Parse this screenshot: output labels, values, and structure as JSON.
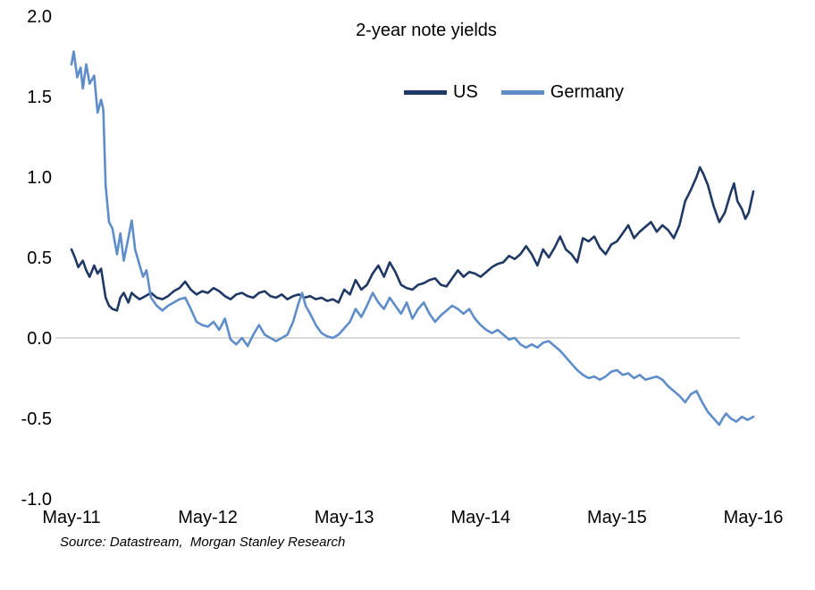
{
  "chart_data": {
    "type": "line",
    "title": "2-year note yields",
    "xlabel": "",
    "ylabel": "",
    "xlim": [
      0,
      60
    ],
    "ylim": [
      -1.0,
      2.0
    ],
    "x_unit": "months since May-2011",
    "x_tick_positions": [
      0,
      12,
      24,
      36,
      48,
      60
    ],
    "x_tick_labels": [
      "May-11",
      "May-12",
      "May-13",
      "May-14",
      "May-15",
      "May-16"
    ],
    "y_ticks": [
      2.0,
      1.5,
      1.0,
      0.5,
      0.0,
      -0.5,
      -1.0
    ],
    "y_tick_labels": [
      "2.0",
      "1.5",
      "1.0",
      "0.5",
      "0.0",
      "-0.5",
      "-1.0"
    ],
    "grid": "zero-line-only",
    "legend_position": "top-center",
    "zero_line_color": "#b3b3b3",
    "source_note": "Source: Datastream,  Morgan Stanley Research",
    "series": [
      {
        "name": "US",
        "color": "#1F3864",
        "points": [
          [
            0,
            0.55
          ],
          [
            0.3,
            0.5
          ],
          [
            0.6,
            0.44
          ],
          [
            1,
            0.48
          ],
          [
            1.3,
            0.42
          ],
          [
            1.6,
            0.38
          ],
          [
            2,
            0.45
          ],
          [
            2.3,
            0.4
          ],
          [
            2.6,
            0.43
          ],
          [
            3,
            0.25
          ],
          [
            3.3,
            0.2
          ],
          [
            3.6,
            0.18
          ],
          [
            4,
            0.17
          ],
          [
            4.3,
            0.25
          ],
          [
            4.6,
            0.28
          ],
          [
            5,
            0.22
          ],
          [
            5.3,
            0.28
          ],
          [
            5.6,
            0.26
          ],
          [
            6,
            0.24
          ],
          [
            6.5,
            0.26
          ],
          [
            7,
            0.28
          ],
          [
            7.5,
            0.25
          ],
          [
            8,
            0.24
          ],
          [
            8.5,
            0.26
          ],
          [
            9,
            0.29
          ],
          [
            9.5,
            0.31
          ],
          [
            10,
            0.35
          ],
          [
            10.5,
            0.3
          ],
          [
            11,
            0.27
          ],
          [
            11.5,
            0.29
          ],
          [
            12,
            0.28
          ],
          [
            12.5,
            0.31
          ],
          [
            13,
            0.29
          ],
          [
            13.5,
            0.26
          ],
          [
            14,
            0.24
          ],
          [
            14.5,
            0.27
          ],
          [
            15,
            0.28
          ],
          [
            15.5,
            0.26
          ],
          [
            16,
            0.25
          ],
          [
            16.5,
            0.28
          ],
          [
            17,
            0.29
          ],
          [
            17.5,
            0.26
          ],
          [
            18,
            0.25
          ],
          [
            18.5,
            0.27
          ],
          [
            19,
            0.24
          ],
          [
            19.5,
            0.26
          ],
          [
            20,
            0.27
          ],
          [
            20.5,
            0.25
          ],
          [
            21,
            0.26
          ],
          [
            21.5,
            0.24
          ],
          [
            22,
            0.25
          ],
          [
            22.5,
            0.23
          ],
          [
            23,
            0.24
          ],
          [
            23.5,
            0.22
          ],
          [
            24,
            0.3
          ],
          [
            24.5,
            0.27
          ],
          [
            25,
            0.36
          ],
          [
            25.5,
            0.3
          ],
          [
            26,
            0.33
          ],
          [
            26.5,
            0.4
          ],
          [
            27,
            0.45
          ],
          [
            27.5,
            0.38
          ],
          [
            28,
            0.47
          ],
          [
            28.5,
            0.41
          ],
          [
            29,
            0.33
          ],
          [
            29.5,
            0.31
          ],
          [
            30,
            0.3
          ],
          [
            30.5,
            0.33
          ],
          [
            31,
            0.34
          ],
          [
            31.5,
            0.36
          ],
          [
            32,
            0.37
          ],
          [
            32.5,
            0.33
          ],
          [
            33,
            0.32
          ],
          [
            33.5,
            0.37
          ],
          [
            34,
            0.42
          ],
          [
            34.5,
            0.38
          ],
          [
            35,
            0.41
          ],
          [
            35.5,
            0.4
          ],
          [
            36,
            0.38
          ],
          [
            36.5,
            0.41
          ],
          [
            37,
            0.44
          ],
          [
            37.5,
            0.46
          ],
          [
            38,
            0.47
          ],
          [
            38.5,
            0.51
          ],
          [
            39,
            0.49
          ],
          [
            39.5,
            0.52
          ],
          [
            40,
            0.57
          ],
          [
            40.5,
            0.52
          ],
          [
            41,
            0.45
          ],
          [
            41.5,
            0.55
          ],
          [
            42,
            0.5
          ],
          [
            42.5,
            0.56
          ],
          [
            43,
            0.63
          ],
          [
            43.5,
            0.55
          ],
          [
            44,
            0.52
          ],
          [
            44.5,
            0.47
          ],
          [
            45,
            0.62
          ],
          [
            45.5,
            0.6
          ],
          [
            46,
            0.63
          ],
          [
            46.5,
            0.56
          ],
          [
            47,
            0.52
          ],
          [
            47.5,
            0.58
          ],
          [
            48,
            0.6
          ],
          [
            48.5,
            0.65
          ],
          [
            49,
            0.7
          ],
          [
            49.5,
            0.62
          ],
          [
            50,
            0.66
          ],
          [
            50.5,
            0.69
          ],
          [
            51,
            0.72
          ],
          [
            51.5,
            0.66
          ],
          [
            52,
            0.7
          ],
          [
            52.5,
            0.67
          ],
          [
            53,
            0.62
          ],
          [
            53.5,
            0.7
          ],
          [
            54,
            0.85
          ],
          [
            54.5,
            0.92
          ],
          [
            55,
            1.0
          ],
          [
            55.3,
            1.06
          ],
          [
            55.6,
            1.02
          ],
          [
            56,
            0.95
          ],
          [
            56.5,
            0.82
          ],
          [
            57,
            0.72
          ],
          [
            57.5,
            0.78
          ],
          [
            58,
            0.9
          ],
          [
            58.3,
            0.96
          ],
          [
            58.6,
            0.85
          ],
          [
            59,
            0.8
          ],
          [
            59.3,
            0.74
          ],
          [
            59.6,
            0.78
          ],
          [
            60,
            0.91
          ]
        ]
      },
      {
        "name": "Germany",
        "color": "#5E8DC9",
        "points": [
          [
            0,
            1.7
          ],
          [
            0.2,
            1.78
          ],
          [
            0.5,
            1.62
          ],
          [
            0.8,
            1.68
          ],
          [
            1,
            1.55
          ],
          [
            1.3,
            1.7
          ],
          [
            1.6,
            1.58
          ],
          [
            2,
            1.63
          ],
          [
            2.3,
            1.4
          ],
          [
            2.6,
            1.48
          ],
          [
            2.8,
            1.42
          ],
          [
            3,
            0.95
          ],
          [
            3.3,
            0.72
          ],
          [
            3.6,
            0.68
          ],
          [
            4,
            0.52
          ],
          [
            4.3,
            0.65
          ],
          [
            4.6,
            0.48
          ],
          [
            5,
            0.62
          ],
          [
            5.3,
            0.73
          ],
          [
            5.6,
            0.55
          ],
          [
            6,
            0.45
          ],
          [
            6.3,
            0.38
          ],
          [
            6.6,
            0.42
          ],
          [
            7,
            0.25
          ],
          [
            7.5,
            0.2
          ],
          [
            8,
            0.17
          ],
          [
            8.5,
            0.2
          ],
          [
            9,
            0.22
          ],
          [
            9.5,
            0.24
          ],
          [
            10,
            0.25
          ],
          [
            10.5,
            0.18
          ],
          [
            11,
            0.1
          ],
          [
            11.5,
            0.08
          ],
          [
            12,
            0.07
          ],
          [
            12.5,
            0.1
          ],
          [
            13,
            0.05
          ],
          [
            13.5,
            0.12
          ],
          [
            14,
            -0.01
          ],
          [
            14.5,
            -0.04
          ],
          [
            15,
            0.0
          ],
          [
            15.5,
            -0.05
          ],
          [
            16,
            0.02
          ],
          [
            16.5,
            0.08
          ],
          [
            17,
            0.02
          ],
          [
            17.5,
            0.0
          ],
          [
            18,
            -0.02
          ],
          [
            18.5,
            0.0
          ],
          [
            19,
            0.02
          ],
          [
            19.5,
            0.1
          ],
          [
            20,
            0.22
          ],
          [
            20.3,
            0.28
          ],
          [
            20.6,
            0.2
          ],
          [
            21,
            0.15
          ],
          [
            21.5,
            0.08
          ],
          [
            22,
            0.03
          ],
          [
            22.5,
            0.01
          ],
          [
            23,
            0.0
          ],
          [
            23.5,
            0.02
          ],
          [
            24,
            0.06
          ],
          [
            24.5,
            0.1
          ],
          [
            25,
            0.18
          ],
          [
            25.5,
            0.13
          ],
          [
            26,
            0.2
          ],
          [
            26.5,
            0.28
          ],
          [
            27,
            0.22
          ],
          [
            27.5,
            0.18
          ],
          [
            28,
            0.25
          ],
          [
            28.5,
            0.2
          ],
          [
            29,
            0.15
          ],
          [
            29.5,
            0.22
          ],
          [
            30,
            0.12
          ],
          [
            30.5,
            0.18
          ],
          [
            31,
            0.22
          ],
          [
            31.5,
            0.15
          ],
          [
            32,
            0.1
          ],
          [
            32.5,
            0.14
          ],
          [
            33,
            0.17
          ],
          [
            33.5,
            0.2
          ],
          [
            34,
            0.18
          ],
          [
            34.5,
            0.15
          ],
          [
            35,
            0.18
          ],
          [
            35.5,
            0.12
          ],
          [
            36,
            0.08
          ],
          [
            36.5,
            0.05
          ],
          [
            37,
            0.03
          ],
          [
            37.5,
            0.05
          ],
          [
            38,
            0.02
          ],
          [
            38.5,
            -0.01
          ],
          [
            39,
            0.0
          ],
          [
            39.5,
            -0.04
          ],
          [
            40,
            -0.06
          ],
          [
            40.5,
            -0.04
          ],
          [
            41,
            -0.06
          ],
          [
            41.5,
            -0.03
          ],
          [
            42,
            -0.02
          ],
          [
            42.5,
            -0.05
          ],
          [
            43,
            -0.08
          ],
          [
            43.5,
            -0.12
          ],
          [
            44,
            -0.16
          ],
          [
            44.5,
            -0.2
          ],
          [
            45,
            -0.23
          ],
          [
            45.5,
            -0.25
          ],
          [
            46,
            -0.24
          ],
          [
            46.5,
            -0.26
          ],
          [
            47,
            -0.24
          ],
          [
            47.5,
            -0.21
          ],
          [
            48,
            -0.2
          ],
          [
            48.5,
            -0.23
          ],
          [
            49,
            -0.22
          ],
          [
            49.5,
            -0.25
          ],
          [
            50,
            -0.23
          ],
          [
            50.5,
            -0.26
          ],
          [
            51,
            -0.25
          ],
          [
            51.5,
            -0.24
          ],
          [
            52,
            -0.26
          ],
          [
            52.5,
            -0.3
          ],
          [
            53,
            -0.33
          ],
          [
            53.5,
            -0.36
          ],
          [
            54,
            -0.4
          ],
          [
            54.5,
            -0.35
          ],
          [
            55,
            -0.33
          ],
          [
            55.5,
            -0.4
          ],
          [
            56,
            -0.46
          ],
          [
            56.5,
            -0.5
          ],
          [
            57,
            -0.54
          ],
          [
            57.3,
            -0.5
          ],
          [
            57.6,
            -0.47
          ],
          [
            58,
            -0.5
          ],
          [
            58.5,
            -0.52
          ],
          [
            59,
            -0.49
          ],
          [
            59.5,
            -0.51
          ],
          [
            60,
            -0.49
          ]
        ]
      }
    ]
  }
}
